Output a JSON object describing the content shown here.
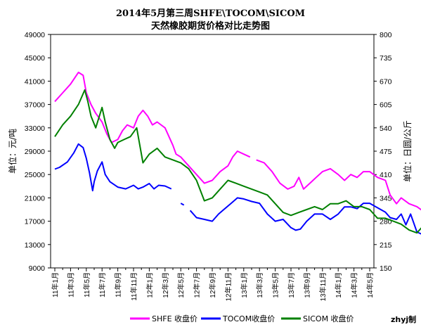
{
  "chart_data": {
    "type": "line",
    "title": "2014年5月第三周SHFE\\TOCOM\\SICOM",
    "subtitle": "天然橡胶期货价格对比走势图",
    "ylabel_left": "单位：元/吨",
    "ylabel_right": "单位：日圆/公斤",
    "credit": "zhyj制",
    "left_axis": {
      "ylim": [
        9000,
        49000
      ],
      "ticks": [
        9000,
        13000,
        17000,
        21000,
        25000,
        29000,
        33000,
        37000,
        41000,
        45000,
        49000
      ]
    },
    "right_axis": {
      "ylim": [
        150,
        800
      ],
      "ticks": [
        150,
        215,
        280,
        345,
        410,
        475,
        540,
        605,
        670,
        735,
        800
      ]
    },
    "x_ticks": [
      "11年1月",
      "11年3月",
      "11年5月",
      "11年7月",
      "11年9月",
      "11年11月",
      "12年1月",
      "12年3月",
      "12年5月",
      "12年7月",
      "12年9月",
      "12年11月",
      "13年1月",
      "13年3月",
      "13年5月",
      "13年7月",
      "13年9月",
      "13年11月",
      "14年1月",
      "14年3月",
      "14年5月"
    ],
    "grid": false,
    "legend_position": "bottom",
    "series": [
      {
        "name": "SHFE 收盘价",
        "color": "#ff00ff",
        "axis": "left",
        "points": [
          [
            0,
            37500
          ],
          [
            0.5,
            39000
          ],
          [
            1,
            40500
          ],
          [
            1.5,
            42500
          ],
          [
            1.8,
            42000
          ],
          [
            2,
            39000
          ],
          [
            2.3,
            37000
          ],
          [
            2.6,
            35500
          ],
          [
            3,
            34000
          ],
          [
            3.3,
            32000
          ],
          [
            3.6,
            30500
          ],
          [
            4,
            31000
          ],
          [
            4.3,
            32500
          ],
          [
            4.6,
            33500
          ],
          [
            5,
            33000
          ],
          [
            5.3,
            35000
          ],
          [
            5.6,
            36000
          ],
          [
            5.9,
            35000
          ],
          [
            6.2,
            33500
          ],
          [
            6.5,
            34000
          ],
          [
            7,
            33000
          ],
          [
            7.5,
            30000
          ],
          [
            7.7,
            28500
          ],
          [
            8,
            28000
          ],
          [
            8.5,
            26500
          ],
          [
            9,
            25000
          ],
          [
            9.5,
            23500
          ],
          [
            10,
            24000
          ],
          [
            10.5,
            25500
          ],
          [
            11,
            26500
          ],
          [
            11.3,
            28000
          ],
          [
            11.6,
            29000
          ],
          [
            12,
            28500
          ],
          [
            12.4,
            28000
          ],
          [
            null,
            null
          ],
          [
            12.8,
            27500
          ],
          [
            13.3,
            27000
          ],
          [
            13.8,
            25500
          ],
          [
            14.3,
            23500
          ],
          [
            14.8,
            22500
          ],
          [
            15.2,
            23000
          ],
          [
            15.5,
            24500
          ],
          [
            15.8,
            22500
          ],
          [
            16.2,
            23500
          ],
          [
            16.6,
            24500
          ],
          [
            17,
            25500
          ],
          [
            17.5,
            26000
          ],
          [
            18,
            25000
          ],
          [
            18.4,
            24000
          ],
          [
            18.8,
            25000
          ],
          [
            19.2,
            24500
          ],
          [
            19.6,
            25500
          ],
          [
            20,
            25500
          ],
          [
            20.5,
            24500
          ],
          [
            21,
            24000
          ],
          [
            21.3,
            21500
          ],
          [
            21.7,
            20000
          ],
          [
            22,
            21000
          ],
          [
            22.5,
            20000
          ],
          [
            23,
            19500
          ],
          [
            23.5,
            18500
          ],
          [
            24,
            19500
          ],
          [
            24.5,
            20000
          ],
          [
            25,
            21000
          ],
          [
            25.5,
            20500
          ],
          [
            26,
            20000
          ],
          [
            26.5,
            20500
          ],
          [
            27,
            19000
          ],
          [
            27.5,
            18000
          ],
          [
            28,
            18500
          ],
          [
            28.5,
            17500
          ],
          [
            29,
            17000
          ],
          [
            29.5,
            16000
          ],
          [
            30,
            15500
          ],
          [
            30.5,
            15000
          ],
          [
            31,
            14500
          ],
          [
            31.5,
            14800
          ],
          [
            32,
            14000
          ]
        ]
      },
      {
        "name": "TOCOM收盘价",
        "color": "#0000ff",
        "axis": "right",
        "points": [
          [
            0,
            425
          ],
          [
            0.3,
            430
          ],
          [
            0.8,
            445
          ],
          [
            1.2,
            470
          ],
          [
            1.5,
            495
          ],
          [
            1.8,
            485
          ],
          [
            2,
            455
          ],
          [
            2.2,
            415
          ],
          [
            2.4,
            365
          ],
          [
            2.5,
            390
          ],
          [
            2.7,
            420
          ],
          [
            3,
            445
          ],
          [
            3.2,
            410
          ],
          [
            3.5,
            390
          ],
          [
            4,
            375
          ],
          [
            4.5,
            370
          ],
          [
            5,
            380
          ],
          [
            5.3,
            370
          ],
          [
            5.6,
            375
          ],
          [
            6,
            385
          ],
          [
            6.3,
            370
          ],
          [
            6.6,
            380
          ],
          [
            7,
            378
          ],
          [
            7.4,
            370
          ],
          [
            null,
            null
          ],
          [
            8,
            330
          ],
          [
            8.2,
            325
          ],
          [
            null,
            null
          ],
          [
            8.6,
            310
          ],
          [
            9,
            290
          ],
          [
            9.5,
            285
          ],
          [
            10,
            280
          ],
          [
            10.4,
            300
          ],
          [
            10.8,
            315
          ],
          [
            11.2,
            330
          ],
          [
            11.6,
            345
          ],
          [
            12,
            342
          ],
          [
            12.5,
            335
          ],
          [
            13,
            330
          ],
          [
            13.5,
            300
          ],
          [
            14,
            280
          ],
          [
            14.5,
            285
          ],
          [
            15,
            262
          ],
          [
            15.3,
            255
          ],
          [
            15.6,
            258
          ],
          [
            16,
            280
          ],
          [
            16.5,
            300
          ],
          [
            17,
            300
          ],
          [
            17.5,
            285
          ],
          [
            18,
            300
          ],
          [
            18.4,
            320
          ],
          [
            18.8,
            320
          ],
          [
            19.2,
            315
          ],
          [
            19.6,
            330
          ],
          [
            20,
            330
          ],
          [
            20.4,
            320
          ],
          [
            20.8,
            310
          ],
          [
            21,
            305
          ],
          [
            21.3,
            290
          ],
          [
            21.7,
            285
          ],
          [
            22,
            300
          ],
          [
            22.3,
            270
          ],
          [
            22.6,
            300
          ],
          [
            23,
            250
          ],
          [
            23.5,
            240
          ],
          [
            24,
            255
          ],
          [
            24.5,
            260
          ],
          [
            25,
            250
          ],
          [
            25.5,
            270
          ],
          [
            26,
            265
          ],
          [
            26.5,
            240
          ],
          [
            27,
            245
          ],
          [
            27.3,
            260
          ],
          [
            27.7,
            255
          ],
          [
            28,
            275
          ],
          [
            28.4,
            265
          ],
          [
            28.8,
            260
          ],
          [
            29,
            245
          ],
          [
            29.4,
            230
          ],
          [
            29.8,
            215
          ],
          [
            30.2,
            230
          ],
          [
            30.6,
            232
          ],
          [
            31,
            228
          ],
          [
            31.5,
            220
          ],
          [
            32,
            218
          ]
        ]
      },
      {
        "name": "SICOM 收盘价",
        "color": "#008000",
        "axis": "left",
        "points": [
          [
            0,
            31500
          ],
          [
            0.5,
            33500
          ],
          [
            1,
            35000
          ],
          [
            1.5,
            37000
          ],
          [
            1.9,
            39500
          ],
          [
            2.1,
            37500
          ],
          [
            2.3,
            35000
          ],
          [
            2.6,
            33000
          ],
          [
            3,
            36500
          ],
          [
            3.2,
            34000
          ],
          [
            3.5,
            31000
          ],
          [
            3.8,
            29500
          ],
          [
            4,
            30500
          ],
          [
            4.4,
            31000
          ],
          [
            4.8,
            31500
          ],
          [
            5.2,
            33000
          ],
          [
            5.6,
            27000
          ],
          [
            6,
            28500
          ],
          [
            6.5,
            29500
          ],
          [
            7,
            28000
          ],
          [
            7.5,
            27500
          ],
          [
            8,
            27000
          ],
          [
            8.5,
            26000
          ],
          [
            9,
            24000
          ],
          [
            9.5,
            20500
          ],
          [
            10,
            21000
          ],
          [
            10.5,
            22500
          ],
          [
            11,
            24000
          ],
          [
            11.5,
            23500
          ],
          [
            12,
            23000
          ],
          [
            12.5,
            22500
          ],
          [
            13,
            22000
          ],
          [
            13.5,
            21500
          ],
          [
            14,
            20000
          ],
          [
            14.5,
            18500
          ],
          [
            15,
            18000
          ],
          [
            15.5,
            18500
          ],
          [
            16,
            19000
          ],
          [
            16.5,
            19500
          ],
          [
            17,
            19000
          ],
          [
            17.5,
            20000
          ],
          [
            18,
            20000
          ],
          [
            18.5,
            20500
          ],
          [
            19,
            19500
          ],
          [
            19.5,
            19500
          ],
          [
            20,
            19000
          ],
          [
            20.5,
            17500
          ],
          [
            21,
            17500
          ],
          [
            21.5,
            17000
          ],
          [
            22,
            16500
          ],
          [
            22.5,
            15500
          ],
          [
            23,
            15000
          ],
          [
            23.5,
            16500
          ],
          [
            24,
            15500
          ],
          [
            24.5,
            15800
          ],
          [
            25,
            16000
          ],
          [
            25.5,
            15800
          ],
          [
            26,
            16000
          ],
          [
            26.5,
            15500
          ],
          [
            27,
            15000
          ],
          [
            27.5,
            14500
          ],
          [
            28,
            13800
          ],
          [
            28.5,
            13000
          ],
          [
            29,
            12500
          ],
          [
            29.5,
            13000
          ],
          [
            30,
            13500
          ],
          [
            30.5,
            14000
          ],
          [
            31,
            13500
          ],
          [
            31.5,
            12500
          ],
          [
            32,
            12400
          ]
        ]
      }
    ]
  }
}
